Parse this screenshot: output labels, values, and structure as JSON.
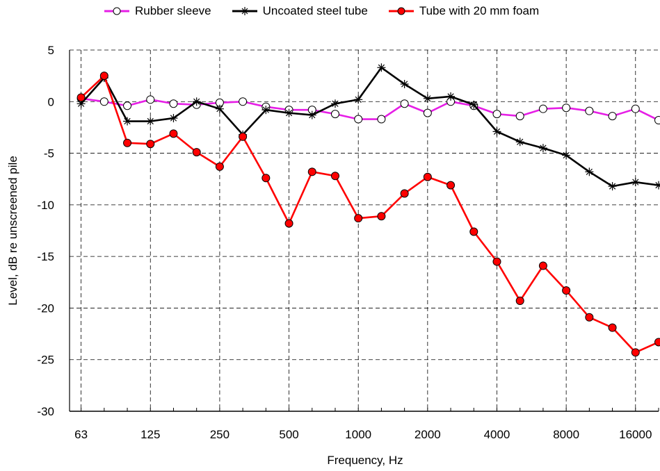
{
  "chart_data": {
    "type": "line",
    "title": "",
    "xlabel": "Frequency, Hz",
    "ylabel": "Level, dB re unscreened pile",
    "x_scale": "log",
    "x_tick_labels": [
      "63",
      "125",
      "250",
      "500",
      "1000",
      "2000",
      "4000",
      "8000",
      "16000"
    ],
    "x": [
      "63",
      "80",
      "100",
      "125",
      "160",
      "200",
      "250",
      "315",
      "400",
      "500",
      "630",
      "800",
      "1000",
      "1250",
      "1600",
      "2000",
      "2500",
      "3150",
      "4000",
      "5000",
      "6300",
      "8000",
      "10000",
      "12500",
      "16000",
      "20000"
    ],
    "ylim": [
      -30,
      5
    ],
    "y_ticks": [
      "5",
      "0",
      "-5",
      "-10",
      "-15",
      "-20",
      "-25",
      "-30"
    ],
    "grid": "dashed",
    "legend_position": "top",
    "series": [
      {
        "name": "Rubber sleeve",
        "color": "#e61ee6",
        "marker": "open-circle",
        "values": [
          0.3,
          0.0,
          -0.4,
          0.2,
          -0.2,
          -0.3,
          -0.1,
          0.0,
          -0.5,
          -0.8,
          -0.8,
          -1.2,
          -1.7,
          -1.7,
          -0.2,
          -1.1,
          0.0,
          -0.4,
          -1.2,
          -1.4,
          -0.7,
          -0.6,
          -0.9,
          -1.4,
          -0.7,
          -1.8
        ]
      },
      {
        "name": "Uncoated steel tube",
        "color": "#000000",
        "marker": "asterisk",
        "values": [
          -0.2,
          2.3,
          -1.9,
          -1.9,
          -1.6,
          0.0,
          -0.7,
          -3.2,
          -0.8,
          -1.1,
          -1.3,
          -0.2,
          0.2,
          3.3,
          1.7,
          0.3,
          0.5,
          -0.3,
          -2.9,
          -3.9,
          -4.5,
          -5.2,
          -6.8,
          -8.2,
          -7.8,
          -8.1
        ]
      },
      {
        "name": "Tube with 20 mm foam",
        "color": "#ff0000",
        "marker": "filled-circle",
        "values": [
          0.4,
          2.5,
          -4.0,
          -4.1,
          -3.1,
          -4.9,
          -6.3,
          -3.4,
          -7.4,
          -11.8,
          -6.8,
          -7.2,
          -11.3,
          -11.1,
          -8.9,
          -7.3,
          -8.1,
          -12.6,
          -15.5,
          -19.3,
          -15.9,
          -18.3,
          -20.9,
          -21.9,
          -24.3,
          -23.3
        ]
      }
    ]
  }
}
